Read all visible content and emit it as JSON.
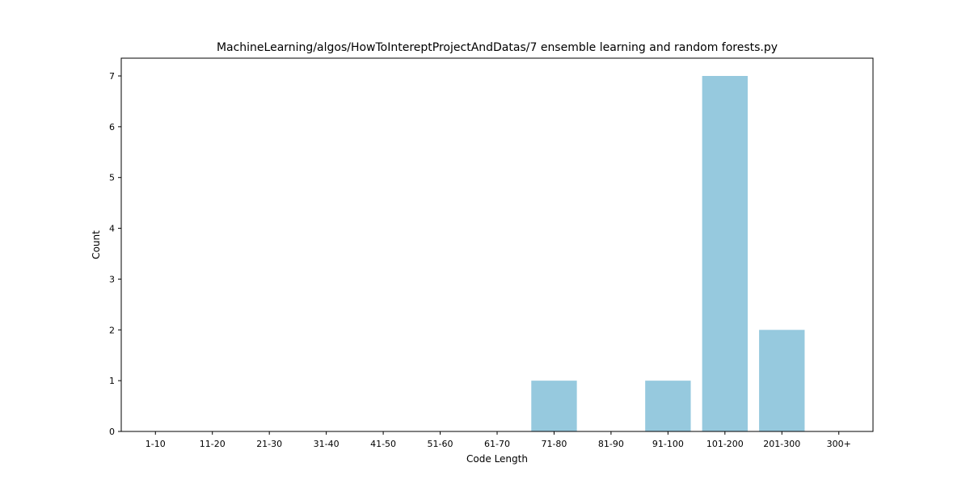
{
  "chart_data": {
    "type": "bar",
    "title": "MachineLearning/algos/HowToIntereptProjectAndDatas/7 ensemble learning and random forests.py",
    "xlabel": "Code Length",
    "ylabel": "Count",
    "categories": [
      "1-10",
      "11-20",
      "21-30",
      "31-40",
      "41-50",
      "51-60",
      "61-70",
      "71-80",
      "81-90",
      "91-100",
      "101-200",
      "201-300",
      "300+"
    ],
    "values": [
      0,
      0,
      0,
      0,
      0,
      0,
      0,
      1,
      0,
      1,
      7,
      2,
      0
    ],
    "ylim": [
      0,
      7.35
    ],
    "yticks": [
      0,
      1,
      2,
      3,
      4,
      5,
      6,
      7
    ],
    "bar_color": "#96c9de",
    "grid": false,
    "legend": "none"
  }
}
